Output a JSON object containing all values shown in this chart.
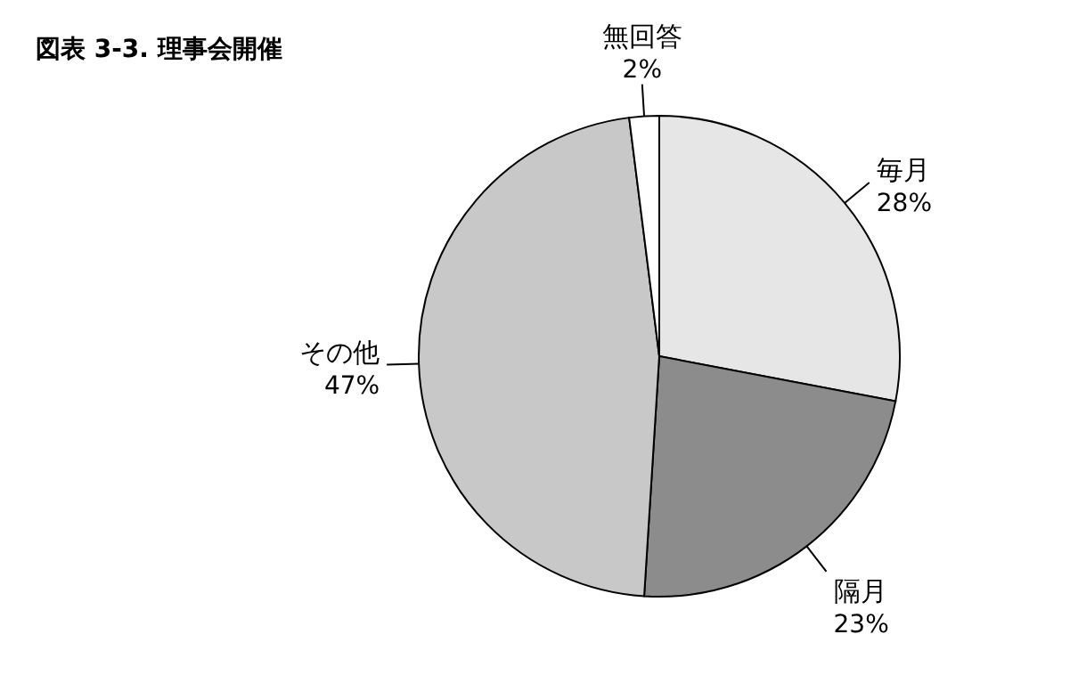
{
  "chart_data": {
    "type": "pie",
    "title": "図表 3-3.  理事会開催",
    "categories": [
      "毎月",
      "隔月",
      "その他",
      "無回答"
    ],
    "values": [
      28,
      23,
      47,
      2
    ],
    "value_labels": [
      "28%",
      "23%",
      "47%",
      "2%"
    ],
    "colors": [
      "#e6e6e6",
      "#8c8c8c",
      "#c8c8c8",
      "#ffffff"
    ]
  }
}
